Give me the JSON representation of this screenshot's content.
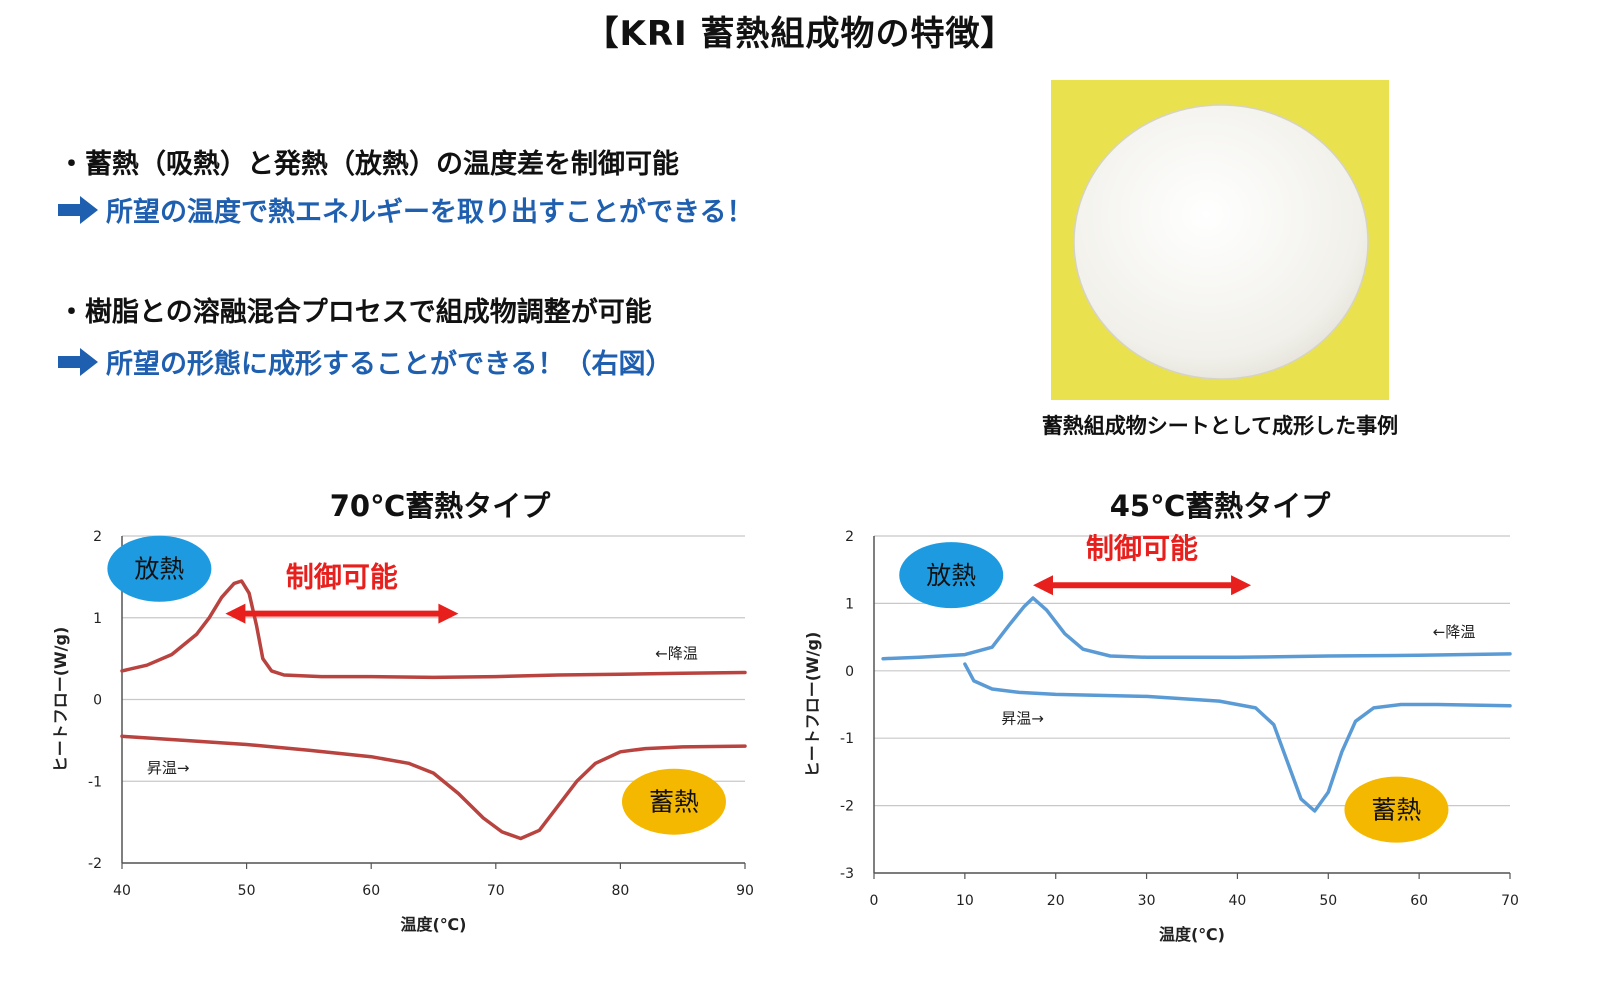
{
  "title": "【KRI 蓄熱組成物の特徴】",
  "features": [
    {
      "bullet": "・蓄熱（吸熱）と発熱（放熱）の温度差を制御可能",
      "result": "所望の温度で熱エネルギーを取り出すことができる！"
    },
    {
      "bullet": "・樹脂との溶融混合プロセスで組成物調整が可能",
      "result": "所望の形態に成形することができる！（右図）"
    }
  ],
  "photo": {
    "caption": "蓄熱組成物シートとして成形した事例"
  },
  "colors": {
    "accent_blue": "#1f5fb0",
    "red": "#e8201d",
    "curve_red": "#b8433f",
    "curve_blue": "#5b9bd5",
    "ellipse_blue": "#1e9be0",
    "ellipse_orange": "#f5b800"
  },
  "chart_data": [
    {
      "type": "line",
      "title": "70℃蓄熱タイプ",
      "xlabel": "温度(℃)",
      "ylabel": "ヒートフロー(W/g)",
      "xlim": [
        40,
        90
      ],
      "ylim": [
        -2,
        2
      ],
      "xticks": [
        40,
        50,
        60,
        70,
        80,
        90
      ],
      "yticks": [
        -2,
        -1,
        0,
        1,
        2
      ],
      "grid": true,
      "color": "#b8433f",
      "series": [
        {
          "name": "←降温",
          "x": [
            40,
            42,
            44,
            46,
            47,
            48,
            49,
            49.6,
            50.2,
            50.8,
            51.3,
            52,
            53,
            56,
            60,
            65,
            70,
            75,
            80,
            85,
            90
          ],
          "y": [
            0.35,
            0.42,
            0.55,
            0.8,
            1.0,
            1.25,
            1.42,
            1.45,
            1.3,
            0.9,
            0.5,
            0.35,
            0.3,
            0.28,
            0.28,
            0.27,
            0.28,
            0.3,
            0.31,
            0.32,
            0.33
          ]
        },
        {
          "name": "昇温→",
          "x": [
            40,
            45,
            50,
            55,
            60,
            63,
            65,
            67,
            69,
            70.5,
            72,
            73.5,
            75,
            76.5,
            78,
            80,
            82,
            85,
            90
          ],
          "y": [
            -0.45,
            -0.5,
            -0.55,
            -0.62,
            -0.7,
            -0.78,
            -0.9,
            -1.15,
            -1.45,
            -1.62,
            -1.7,
            -1.6,
            -1.3,
            -1.0,
            -0.78,
            -0.64,
            -0.6,
            -0.58,
            -0.57
          ]
        }
      ],
      "annotations": {
        "exotherm": "放熱",
        "endotherm": "蓄熱",
        "control": "制御可能",
        "cooling": "←降温",
        "heating": "昇温→"
      }
    },
    {
      "type": "line",
      "title": "45℃蓄熱タイプ",
      "xlabel": "温度(℃)",
      "ylabel": "ヒートフロー(W/g)",
      "xlim": [
        0,
        70
      ],
      "ylim": [
        -3,
        2
      ],
      "xticks": [
        0,
        10,
        20,
        30,
        40,
        50,
        60,
        70
      ],
      "yticks": [
        -3,
        -2,
        -1,
        0,
        1,
        2
      ],
      "grid": true,
      "color": "#5b9bd5",
      "series": [
        {
          "name": "←降温",
          "x": [
            1,
            5,
            10,
            13,
            15,
            16.5,
            17.5,
            19,
            21,
            23,
            26,
            30,
            40,
            50,
            60,
            70
          ],
          "y": [
            0.18,
            0.2,
            0.24,
            0.35,
            0.7,
            0.95,
            1.08,
            0.9,
            0.55,
            0.32,
            0.22,
            0.2,
            0.2,
            0.22,
            0.23,
            0.25
          ]
        },
        {
          "name": "昇温→",
          "x": [
            10,
            11,
            13,
            16,
            20,
            30,
            38,
            42,
            44,
            45.5,
            47,
            48.5,
            50,
            51.5,
            53,
            55,
            58,
            62,
            70
          ],
          "y": [
            0.1,
            -0.15,
            -0.27,
            -0.32,
            -0.35,
            -0.38,
            -0.45,
            -0.55,
            -0.8,
            -1.35,
            -1.9,
            -2.08,
            -1.8,
            -1.2,
            -0.75,
            -0.55,
            -0.5,
            -0.5,
            -0.52
          ]
        }
      ],
      "annotations": {
        "exotherm": "放熱",
        "endotherm": "蓄熱",
        "control": "制御可能",
        "cooling": "←降温",
        "heating": "昇温→"
      }
    }
  ]
}
